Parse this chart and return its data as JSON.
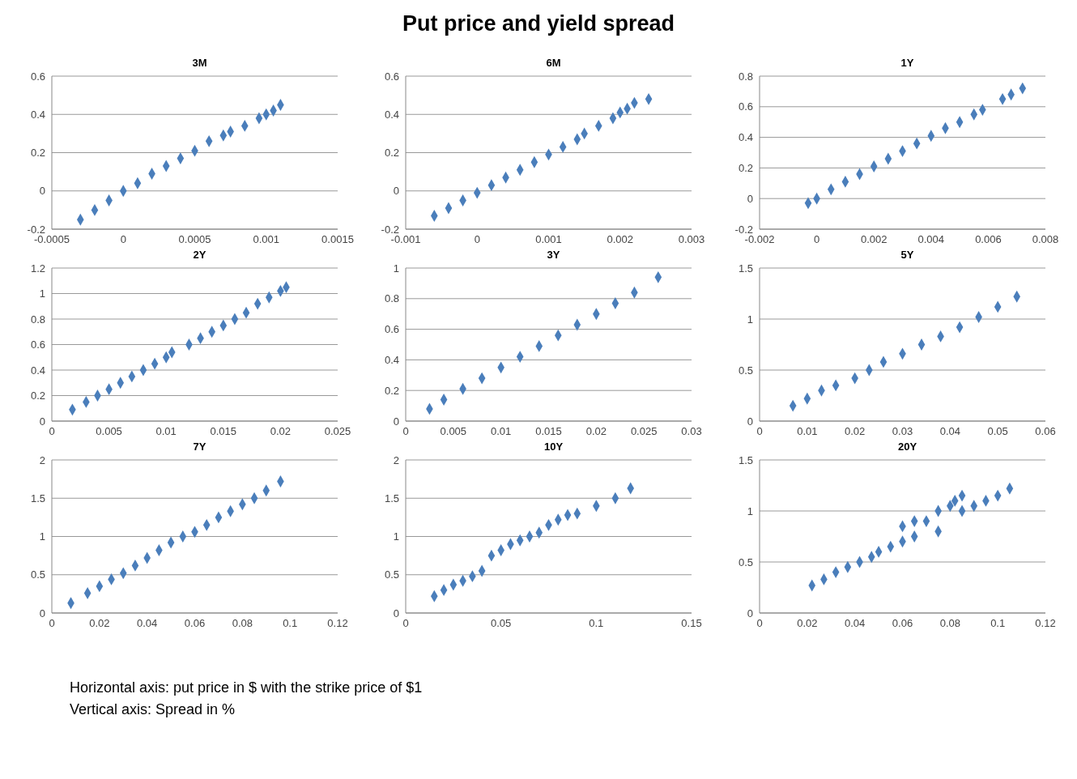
{
  "chart_data": [
    {
      "type": "other",
      "title": "Put price and yield spread",
      "annotations": [
        "Horizontal axis: put price in $ with the strike price of $1",
        "Vertical axis: Spread in %"
      ]
    },
    {
      "type": "scatter",
      "title": "3M",
      "x": [
        -0.0003,
        -0.0002,
        -0.0001,
        0,
        0.0001,
        0.0002,
        0.0003,
        0.0004,
        0.0005,
        0.0006,
        0.0007,
        0.00075,
        0.00085,
        0.00095,
        0.001,
        0.00105,
        0.0011
      ],
      "values": [
        -0.15,
        -0.1,
        -0.05,
        0,
        0.04,
        0.09,
        0.13,
        0.17,
        0.21,
        0.26,
        0.29,
        0.31,
        0.34,
        0.38,
        0.4,
        0.42,
        0.45
      ],
      "color": "#4a7ebb",
      "marker": "diamond",
      "grid": "y",
      "xlim": [
        -0.0005,
        0.0015
      ],
      "xticks": [
        -0.0005,
        0,
        0.0005,
        0.001,
        0.0015
      ],
      "ylim": [
        -0.2,
        0.6
      ],
      "yticks": [
        -0.2,
        0,
        0.2,
        0.4,
        0.6
      ]
    },
    {
      "type": "scatter",
      "title": "6M",
      "x": [
        -0.0006,
        -0.0004,
        -0.0002,
        0,
        0.0002,
        0.0004,
        0.0006,
        0.0008,
        0.001,
        0.0012,
        0.0014,
        0.0015,
        0.0017,
        0.0019,
        0.002,
        0.0021,
        0.0022,
        0.0024
      ],
      "values": [
        -0.13,
        -0.09,
        -0.05,
        -0.01,
        0.03,
        0.07,
        0.11,
        0.15,
        0.19,
        0.23,
        0.27,
        0.3,
        0.34,
        0.38,
        0.41,
        0.43,
        0.46,
        0.48
      ],
      "color": "#4a7ebb",
      "marker": "diamond",
      "grid": "y",
      "xlim": [
        -0.001,
        0.003
      ],
      "xticks": [
        -0.001,
        0,
        0.001,
        0.002,
        0.003
      ],
      "ylim": [
        -0.2,
        0.6
      ],
      "yticks": [
        -0.2,
        0,
        0.2,
        0.4,
        0.6
      ]
    },
    {
      "type": "scatter",
      "title": "1Y",
      "x": [
        -0.0003,
        0,
        0.0005,
        0.001,
        0.0015,
        0.002,
        0.0025,
        0.003,
        0.0035,
        0.004,
        0.0045,
        0.005,
        0.0055,
        0.0058,
        0.0065,
        0.0068,
        0.0072
      ],
      "values": [
        -0.03,
        0,
        0.06,
        0.11,
        0.16,
        0.21,
        0.26,
        0.31,
        0.36,
        0.41,
        0.46,
        0.5,
        0.55,
        0.58,
        0.65,
        0.68,
        0.72
      ],
      "color": "#4a7ebb",
      "marker": "diamond",
      "grid": "y",
      "xlim": [
        -0.002,
        0.008
      ],
      "xticks": [
        -0.002,
        0,
        0.002,
        0.004,
        0.006,
        0.008
      ],
      "ylim": [
        -0.2,
        0.8
      ],
      "yticks": [
        -0.2,
        0,
        0.2,
        0.4,
        0.6,
        0.8
      ]
    },
    {
      "type": "scatter",
      "title": "2Y",
      "x": [
        0.0018,
        0.003,
        0.004,
        0.005,
        0.006,
        0.007,
        0.008,
        0.009,
        0.01,
        0.0105,
        0.012,
        0.013,
        0.014,
        0.015,
        0.016,
        0.017,
        0.018,
        0.019,
        0.02,
        0.0205
      ],
      "values": [
        0.09,
        0.15,
        0.2,
        0.25,
        0.3,
        0.35,
        0.4,
        0.45,
        0.5,
        0.54,
        0.6,
        0.65,
        0.7,
        0.75,
        0.8,
        0.85,
        0.92,
        0.97,
        1.02,
        1.05
      ],
      "color": "#4a7ebb",
      "marker": "diamond",
      "grid": "y",
      "xlim": [
        0,
        0.025
      ],
      "xticks": [
        0,
        0.005,
        0.01,
        0.015,
        0.02,
        0.025
      ],
      "ylim": [
        0,
        1.2
      ],
      "yticks": [
        0,
        0.2,
        0.4,
        0.6,
        0.8,
        1,
        1.2
      ]
    },
    {
      "type": "scatter",
      "title": "3Y",
      "x": [
        0.0025,
        0.004,
        0.006,
        0.008,
        0.01,
        0.012,
        0.014,
        0.016,
        0.018,
        0.02,
        0.022,
        0.024,
        0.0265
      ],
      "values": [
        0.08,
        0.14,
        0.21,
        0.28,
        0.35,
        0.42,
        0.49,
        0.56,
        0.63,
        0.7,
        0.77,
        0.84,
        0.94
      ],
      "color": "#4a7ebb",
      "marker": "diamond",
      "grid": "y",
      "xlim": [
        0,
        0.03
      ],
      "xticks": [
        0,
        0.005,
        0.01,
        0.015,
        0.02,
        0.025,
        0.03
      ],
      "ylim": [
        0,
        1
      ],
      "yticks": [
        0,
        0.2,
        0.4,
        0.6,
        0.8,
        1
      ]
    },
    {
      "type": "scatter",
      "title": "5Y",
      "x": [
        0.007,
        0.01,
        0.013,
        0.016,
        0.02,
        0.023,
        0.026,
        0.03,
        0.034,
        0.038,
        0.042,
        0.046,
        0.05,
        0.054
      ],
      "values": [
        0.15,
        0.22,
        0.3,
        0.35,
        0.42,
        0.5,
        0.58,
        0.66,
        0.75,
        0.83,
        0.92,
        1.02,
        1.12,
        1.22
      ],
      "color": "#4a7ebb",
      "marker": "diamond",
      "grid": "y",
      "xlim": [
        0,
        0.06
      ],
      "xticks": [
        0,
        0.01,
        0.02,
        0.03,
        0.04,
        0.05,
        0.06
      ],
      "ylim": [
        0,
        1.5
      ],
      "yticks": [
        0,
        0.5,
        1,
        1.5
      ]
    },
    {
      "type": "scatter",
      "title": "7Y",
      "x": [
        0.008,
        0.015,
        0.02,
        0.025,
        0.03,
        0.035,
        0.04,
        0.045,
        0.05,
        0.055,
        0.06,
        0.065,
        0.07,
        0.075,
        0.08,
        0.085,
        0.09,
        0.096
      ],
      "values": [
        0.13,
        0.26,
        0.35,
        0.44,
        0.52,
        0.62,
        0.72,
        0.82,
        0.92,
        1.0,
        1.06,
        1.15,
        1.25,
        1.33,
        1.42,
        1.5,
        1.6,
        1.72
      ],
      "color": "#4a7ebb",
      "marker": "diamond",
      "grid": "y",
      "xlim": [
        0,
        0.12
      ],
      "xticks": [
        0,
        0.02,
        0.04,
        0.06,
        0.08,
        0.1,
        0.12
      ],
      "ylim": [
        0,
        2
      ],
      "yticks": [
        0,
        0.5,
        1,
        1.5,
        2
      ]
    },
    {
      "type": "scatter",
      "title": "10Y",
      "x": [
        0.015,
        0.02,
        0.025,
        0.03,
        0.035,
        0.04,
        0.045,
        0.05,
        0.055,
        0.06,
        0.065,
        0.07,
        0.075,
        0.08,
        0.085,
        0.09,
        0.1,
        0.11,
        0.118
      ],
      "values": [
        0.22,
        0.3,
        0.37,
        0.42,
        0.48,
        0.55,
        0.75,
        0.82,
        0.9,
        0.95,
        1.0,
        1.05,
        1.15,
        1.22,
        1.28,
        1.3,
        1.4,
        1.5,
        1.63
      ],
      "color": "#4a7ebb",
      "marker": "diamond",
      "grid": "y",
      "xlim": [
        0,
        0.15
      ],
      "xticks": [
        0,
        0.05,
        0.1,
        0.15
      ],
      "ylim": [
        0,
        2
      ],
      "yticks": [
        0,
        0.5,
        1,
        1.5,
        2
      ]
    },
    {
      "type": "scatter",
      "title": "20Y",
      "x": [
        0.022,
        0.027,
        0.032,
        0.037,
        0.042,
        0.047,
        0.05,
        0.055,
        0.06,
        0.065,
        0.06,
        0.065,
        0.07,
        0.075,
        0.08,
        0.082,
        0.085,
        0.09,
        0.095,
        0.1,
        0.105,
        0.075,
        0.085
      ],
      "values": [
        0.27,
        0.33,
        0.4,
        0.45,
        0.5,
        0.55,
        0.6,
        0.65,
        0.7,
        0.75,
        0.85,
        0.9,
        0.9,
        1.0,
        1.05,
        1.1,
        1.15,
        1.05,
        1.1,
        1.15,
        1.22,
        0.8,
        1.0
      ],
      "color": "#4a7ebb",
      "marker": "diamond",
      "grid": "y",
      "xlim": [
        0,
        0.12
      ],
      "xticks": [
        0,
        0.02,
        0.04,
        0.06,
        0.08,
        0.1,
        0.12
      ],
      "ylim": [
        0,
        1.5
      ],
      "yticks": [
        0,
        0.5,
        1,
        1.5
      ]
    }
  ]
}
